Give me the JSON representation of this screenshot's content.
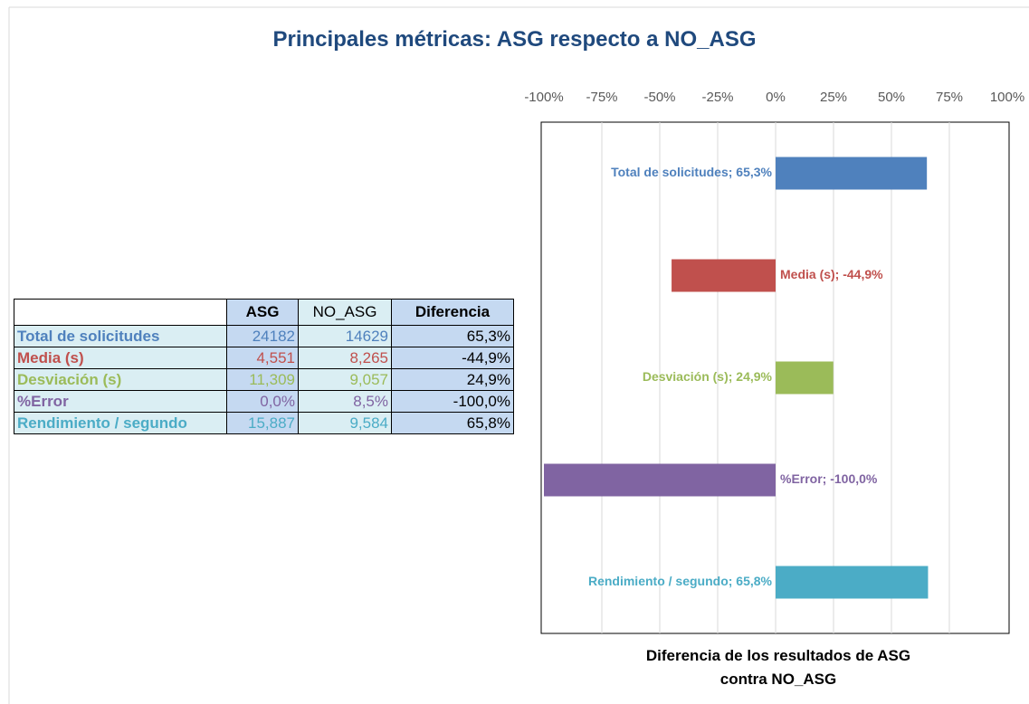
{
  "title": "Principales métricas: ASG respecto a NO_ASG",
  "table": {
    "header": [
      "ASG",
      "NO_ASG",
      "Diferencia"
    ],
    "rows": [
      [
        "24182",
        "14629",
        "65,3%"
      ],
      [
        "4,551",
        "8,265",
        "-44,9%"
      ],
      [
        "11,309",
        "9,057",
        "24,9%"
      ],
      [
        "0,0%",
        "8,5%",
        "-100,0%"
      ],
      [
        "15,887",
        "9,584",
        "65,8%"
      ]
    ]
  },
  "chart_data": {
    "type": "hbar",
    "categories": [
      "Total de solicitudes",
      "Media (s)",
      "Desviación (s)",
      "%Error",
      "Rendimiento / segundo"
    ],
    "values": [
      65.3,
      -44.9,
      24.9,
      -100,
      65.8
    ],
    "value_labels": [
      "Total de solicitudes; 65,3%",
      "Media (s); -44,9%",
      "Desviación (s); 24,9%",
      "%Error; -100,0%",
      "Rendimiento / segundo; 65,8%"
    ],
    "colors": [
      "#4f81bd",
      "#c0504d",
      "#9bbb59",
      "#8064a2",
      "#4bacc6"
    ],
    "xlabel": "Diferencia de los resultados de ASG contra NO_ASG",
    "xlim": [
      -100,
      100
    ],
    "xticks": [
      {
        "value": -100,
        "label": "-100%"
      },
      {
        "value": -75,
        "label": "-75%"
      },
      {
        "value": -50,
        "label": "-50%"
      },
      {
        "value": -25,
        "label": "-25%"
      },
      {
        "value": 0,
        "label": "0%"
      },
      {
        "value": 25,
        "label": "25%"
      },
      {
        "value": 50,
        "label": "50%"
      },
      {
        "value": 75,
        "label": "75%"
      },
      {
        "value": 100,
        "label": "100%"
      }
    ],
    "grid": true
  }
}
